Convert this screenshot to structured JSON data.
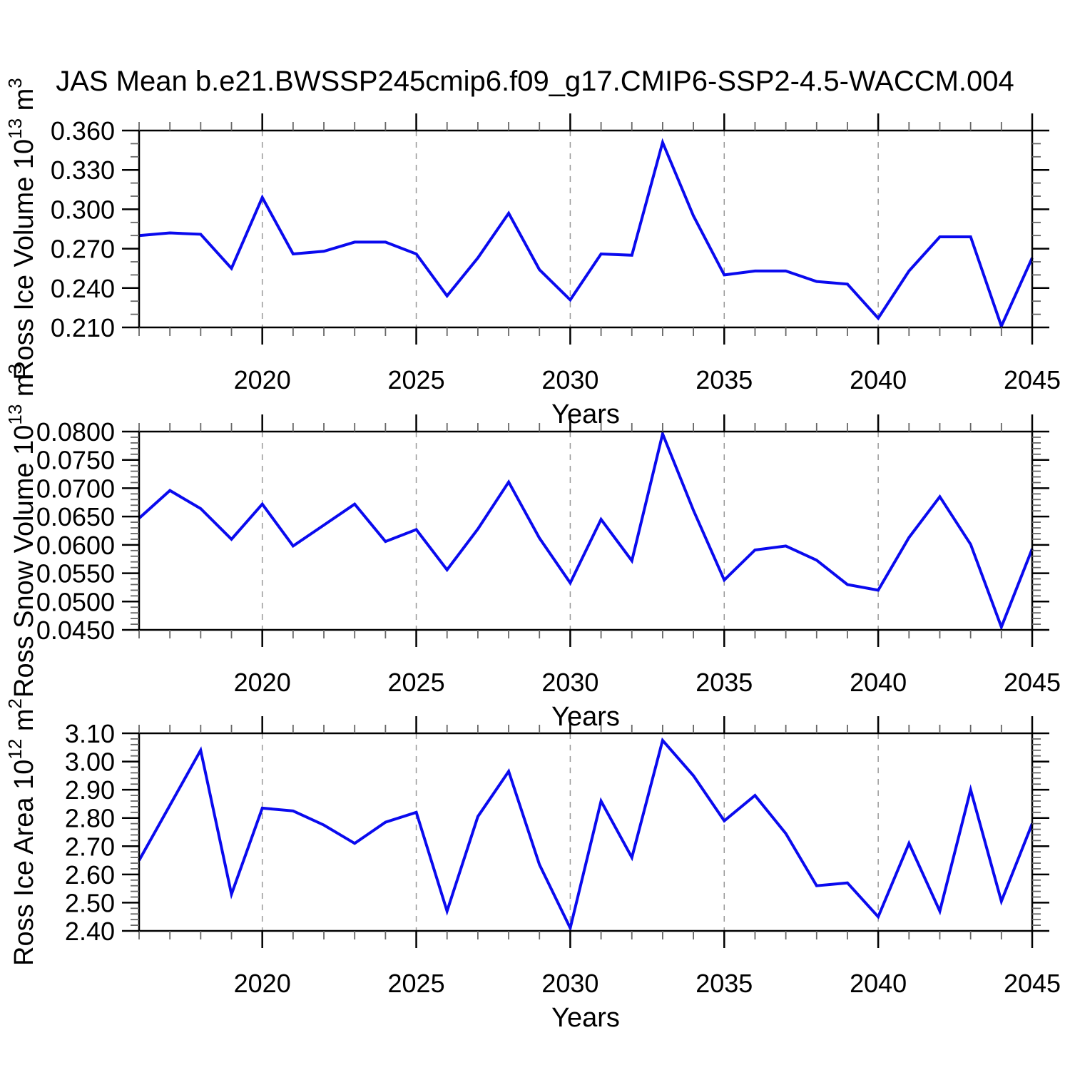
{
  "title": "JAS Mean b.e21.BWSSP245cmip6.f09_g17.CMIP6-SSP2-4.5-WACCM.004",
  "colors": {
    "line": "#0a0aee",
    "frame": "#000000",
    "minor_tick": "#666666",
    "gridline": "#999999",
    "background": "#ffffff"
  },
  "chart_data": [
    {
      "type": "line",
      "id": "ross-ice-volume",
      "ylabel_segments": [
        {
          "t": "Ross Ice Volume 10"
        },
        {
          "t": "13",
          "sup": true
        },
        {
          "t": " m"
        },
        {
          "t": "3",
          "sup": true
        }
      ],
      "xlabel": "Years",
      "x": [
        2016,
        2017,
        2018,
        2019,
        2020,
        2021,
        2022,
        2023,
        2024,
        2025,
        2026,
        2027,
        2028,
        2029,
        2030,
        2031,
        2032,
        2033,
        2034,
        2035,
        2036,
        2037,
        2038,
        2039,
        2040,
        2041,
        2042,
        2043,
        2044,
        2045
      ],
      "values": [
        0.28,
        0.282,
        0.281,
        0.255,
        0.309,
        0.266,
        0.268,
        0.275,
        0.275,
        0.266,
        0.234,
        0.263,
        0.297,
        0.254,
        0.231,
        0.266,
        0.265,
        0.351,
        0.295,
        0.25,
        0.253,
        0.253,
        0.245,
        0.243,
        0.217,
        0.253,
        0.279,
        0.279,
        0.211,
        0.263
      ],
      "ylim": [
        0.21,
        0.36
      ],
      "yticks": [
        {
          "label": "0.360",
          "value": 0.36
        },
        {
          "label": "0.330",
          "value": 0.33
        },
        {
          "label": "0.300",
          "value": 0.3
        },
        {
          "label": "0.270",
          "value": 0.27
        },
        {
          "label": "0.240",
          "value": 0.24
        },
        {
          "label": "0.210",
          "value": 0.21
        }
      ],
      "yminor_step": 0.01,
      "xlim": [
        2016,
        2045
      ],
      "xticks": [
        {
          "label": "2020",
          "value": 2020
        },
        {
          "label": "2025",
          "value": 2025
        },
        {
          "label": "2030",
          "value": 2030
        },
        {
          "label": "2035",
          "value": 2035
        },
        {
          "label": "2040",
          "value": 2040
        },
        {
          "label": "2045",
          "value": 2045
        }
      ],
      "xminor_step": 1,
      "gridlines_at": [
        2020,
        2025,
        2030,
        2035,
        2040
      ],
      "grid_dashed": true,
      "legend": null
    },
    {
      "type": "line",
      "id": "ross-snow-volume",
      "ylabel_segments": [
        {
          "t": "Ross Snow Volume 10"
        },
        {
          "t": "13",
          "sup": true
        },
        {
          "t": " m"
        },
        {
          "t": "3",
          "sup": true
        }
      ],
      "xlabel": "Years",
      "x": [
        2016,
        2017,
        2018,
        2019,
        2020,
        2021,
        2022,
        2023,
        2024,
        2025,
        2026,
        2027,
        2028,
        2029,
        2030,
        2031,
        2032,
        2033,
        2034,
        2035,
        2036,
        2037,
        2038,
        2039,
        2040,
        2041,
        2042,
        2043,
        2044,
        2045
      ],
      "values": [
        0.0647,
        0.0696,
        0.0664,
        0.061,
        0.0672,
        0.0598,
        0.0635,
        0.0672,
        0.0606,
        0.0627,
        0.0556,
        0.0628,
        0.0711,
        0.0612,
        0.0533,
        0.0645,
        0.0572,
        0.0796,
        0.0661,
        0.0538,
        0.0591,
        0.0598,
        0.0573,
        0.053,
        0.052,
        0.0613,
        0.0685,
        0.0601,
        0.0455,
        0.0593
      ],
      "ylim": [
        0.045,
        0.08
      ],
      "yticks": [
        {
          "label": "0.0800",
          "value": 0.08
        },
        {
          "label": "0.0750",
          "value": 0.075
        },
        {
          "label": "0.0700",
          "value": 0.07
        },
        {
          "label": "0.0650",
          "value": 0.065
        },
        {
          "label": "0.0600",
          "value": 0.06
        },
        {
          "label": "0.0550",
          "value": 0.055
        },
        {
          "label": "0.0500",
          "value": 0.05
        },
        {
          "label": "0.0450",
          "value": 0.045
        }
      ],
      "yminor_step": 0.001,
      "xlim": [
        2016,
        2045
      ],
      "xticks": [
        {
          "label": "2020",
          "value": 2020
        },
        {
          "label": "2025",
          "value": 2025
        },
        {
          "label": "2030",
          "value": 2030
        },
        {
          "label": "2035",
          "value": 2035
        },
        {
          "label": "2040",
          "value": 2040
        },
        {
          "label": "2045",
          "value": 2045
        }
      ],
      "xminor_step": 1,
      "gridlines_at": [
        2020,
        2025,
        2030,
        2035,
        2040
      ],
      "grid_dashed": true,
      "legend": null
    },
    {
      "type": "line",
      "id": "ross-ice-area",
      "ylabel_segments": [
        {
          "t": "Ross Ice Area 10"
        },
        {
          "t": "12",
          "sup": true
        },
        {
          "t": " m"
        },
        {
          "t": "2",
          "sup": true
        }
      ],
      "xlabel": "Years",
      "x": [
        2016,
        2017,
        2018,
        2019,
        2020,
        2021,
        2022,
        2023,
        2024,
        2025,
        2026,
        2027,
        2028,
        2029,
        2030,
        2031,
        2032,
        2033,
        2034,
        2035,
        2036,
        2037,
        2038,
        2039,
        2040,
        2041,
        2042,
        2043,
        2044,
        2045
      ],
      "values": [
        2.65,
        2.845,
        3.04,
        2.53,
        2.835,
        2.825,
        2.775,
        2.71,
        2.785,
        2.82,
        2.47,
        2.805,
        2.965,
        2.635,
        2.41,
        2.86,
        2.66,
        3.075,
        2.95,
        2.79,
        2.88,
        2.745,
        2.56,
        2.57,
        2.45,
        2.71,
        2.47,
        2.9,
        2.505,
        2.78
      ],
      "ylim": [
        2.4,
        3.1
      ],
      "yticks": [
        {
          "label": "3.10",
          "value": 3.1
        },
        {
          "label": "3.00",
          "value": 3.0
        },
        {
          "label": "2.90",
          "value": 2.9
        },
        {
          "label": "2.80",
          "value": 2.8
        },
        {
          "label": "2.70",
          "value": 2.7
        },
        {
          "label": "2.60",
          "value": 2.6
        },
        {
          "label": "2.50",
          "value": 2.5
        },
        {
          "label": "2.40",
          "value": 2.4
        }
      ],
      "yminor_step": 0.02,
      "xlim": [
        2016,
        2045
      ],
      "xticks": [
        {
          "label": "2020",
          "value": 2020
        },
        {
          "label": "2025",
          "value": 2025
        },
        {
          "label": "2030",
          "value": 2030
        },
        {
          "label": "2035",
          "value": 2035
        },
        {
          "label": "2040",
          "value": 2040
        },
        {
          "label": "2045",
          "value": 2045
        }
      ],
      "xminor_step": 1,
      "gridlines_at": [
        2020,
        2025,
        2030,
        2035,
        2040
      ],
      "grid_dashed": true,
      "legend": null
    }
  ]
}
